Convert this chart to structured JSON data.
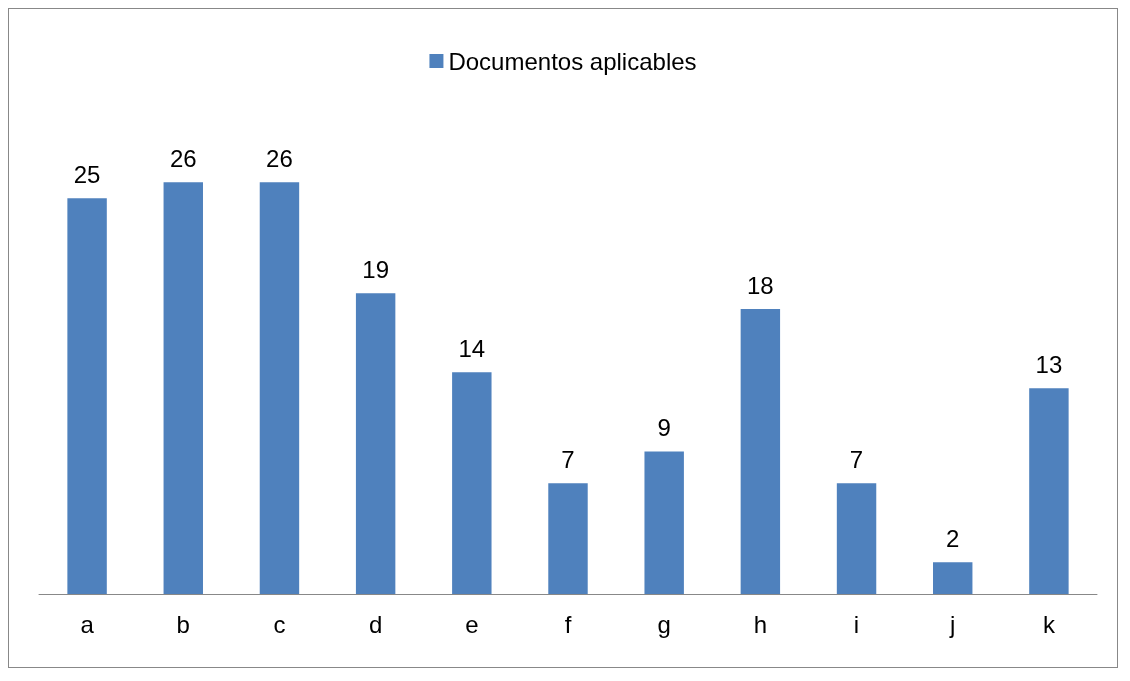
{
  "chart_data": {
    "type": "bar",
    "categories": [
      "a",
      "b",
      "c",
      "d",
      "e",
      "f",
      "g",
      "h",
      "i",
      "j",
      "k"
    ],
    "series": [
      {
        "name": "Documentos aplicables",
        "color": "#4f81bd",
        "values": [
          25,
          26,
          26,
          19,
          14,
          7,
          9,
          18,
          7,
          2,
          13
        ]
      }
    ],
    "data_labels": true,
    "legend": "top",
    "grid": false
  }
}
